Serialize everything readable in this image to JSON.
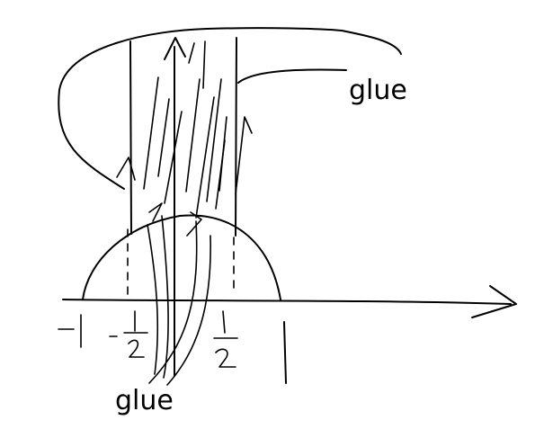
{
  "labels": {
    "glue_top": "glue",
    "glue_bottom": "glue"
  },
  "ticks": {
    "minus_one": "-1",
    "minus_half_sign": "-",
    "minus_half_num": "1",
    "minus_half_den": "2",
    "half_num": "1",
    "half_den": "2"
  },
  "colors": {
    "ink": "#000000",
    "background": "#ffffff"
  }
}
